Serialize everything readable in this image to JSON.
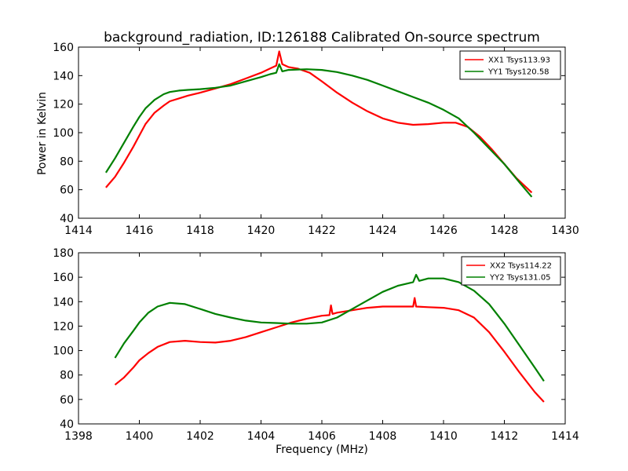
{
  "figure": {
    "title": "background_radiation, ID:126188 Calibrated On-source spectrum",
    "ylabel": "Power in Kelvin",
    "xlabel": "Frequency (MHz)"
  },
  "chart_data": [
    {
      "type": "line",
      "title": "background_radiation, ID:126188 Calibrated On-source spectrum",
      "xlabel": "",
      "ylabel": "Power in Kelvin",
      "xlim": [
        1414,
        1430
      ],
      "ylim": [
        40,
        160
      ],
      "xticks": [
        1414,
        1416,
        1418,
        1420,
        1422,
        1424,
        1426,
        1428,
        1430
      ],
      "yticks": [
        40,
        60,
        80,
        100,
        120,
        140,
        160
      ],
      "grid": false,
      "legend_position": "top-right",
      "series": [
        {
          "name": "XX1 Tsys113.93",
          "color": "#ff0000",
          "x": [
            1414.9,
            1415.2,
            1415.5,
            1415.8,
            1416.0,
            1416.2,
            1416.5,
            1416.8,
            1417.0,
            1417.3,
            1417.6,
            1418.0,
            1418.5,
            1419.0,
            1419.5,
            1420.0,
            1420.3,
            1420.5,
            1420.6,
            1420.7,
            1420.9,
            1421.2,
            1421.6,
            1422.0,
            1422.5,
            1423.0,
            1423.5,
            1424.0,
            1424.5,
            1425.0,
            1425.5,
            1426.0,
            1426.4,
            1426.8,
            1427.2,
            1427.6,
            1428.0,
            1428.4,
            1428.9
          ],
          "values": [
            61.5,
            69,
            79,
            90,
            98,
            106,
            114,
            119,
            122,
            124,
            126,
            128,
            131,
            134,
            138,
            142,
            145,
            147,
            157,
            148,
            146,
            145,
            142,
            136,
            128,
            121,
            115,
            110,
            107,
            105.5,
            106,
            107,
            107,
            104,
            97,
            88,
            78,
            68,
            58
          ]
        },
        {
          "name": "YY1 Tsys120.58",
          "color": "#008000",
          "x": [
            1414.9,
            1415.2,
            1415.5,
            1415.8,
            1416.0,
            1416.2,
            1416.5,
            1416.8,
            1417.0,
            1417.3,
            1417.6,
            1418.0,
            1418.5,
            1419.0,
            1419.5,
            1420.0,
            1420.3,
            1420.5,
            1420.6,
            1420.7,
            1420.9,
            1421.5,
            1422.0,
            1422.5,
            1423.0,
            1423.5,
            1424.0,
            1424.5,
            1425.0,
            1425.5,
            1426.0,
            1426.5,
            1427.0,
            1427.5,
            1428.0,
            1428.5,
            1428.9
          ],
          "values": [
            72,
            82,
            93,
            104,
            111,
            117,
            123,
            127,
            128.5,
            129.5,
            130,
            130.5,
            131.5,
            133,
            136,
            139,
            141,
            142,
            148,
            143,
            144,
            144.5,
            144,
            142.5,
            140,
            137,
            133,
            129,
            125,
            121,
            116,
            110,
            100,
            89,
            78,
            65,
            55
          ]
        }
      ]
    },
    {
      "type": "line",
      "title": "",
      "xlabel": "Frequency (MHz)",
      "ylabel": "",
      "xlim": [
        1398,
        1414
      ],
      "ylim": [
        40,
        180
      ],
      "xticks": [
        1398,
        1400,
        1402,
        1404,
        1406,
        1408,
        1410,
        1412,
        1414
      ],
      "yticks": [
        40,
        60,
        80,
        100,
        120,
        140,
        160,
        180
      ],
      "grid": false,
      "legend_position": "top-right",
      "series": [
        {
          "name": "XX2 Tsys114.22",
          "color": "#ff0000",
          "x": [
            1399.2,
            1399.5,
            1399.8,
            1400.0,
            1400.3,
            1400.6,
            1401.0,
            1401.5,
            1402.0,
            1402.5,
            1403.0,
            1403.5,
            1404.0,
            1404.5,
            1405.0,
            1405.5,
            1406.0,
            1406.25,
            1406.3,
            1406.35,
            1406.5,
            1407.0,
            1407.5,
            1408.0,
            1408.5,
            1409.0,
            1409.05,
            1409.1,
            1409.5,
            1410.0,
            1410.5,
            1411.0,
            1411.5,
            1412.0,
            1412.5,
            1413.0,
            1413.3
          ],
          "values": [
            72,
            78,
            86,
            92,
            98,
            103,
            107,
            108,
            107,
            106.5,
            108,
            111,
            115,
            119,
            123,
            126,
            128.5,
            129,
            137,
            130,
            131,
            133,
            135,
            136,
            136,
            136,
            143,
            136,
            135.5,
            135,
            133,
            127,
            115,
            99,
            82,
            66,
            58
          ]
        },
        {
          "name": "YY2 Tsys131.05",
          "color": "#008000",
          "x": [
            1399.2,
            1399.5,
            1399.8,
            1400.0,
            1400.3,
            1400.6,
            1401.0,
            1401.5,
            1402.0,
            1402.5,
            1403.0,
            1403.5,
            1404.0,
            1404.5,
            1405.0,
            1405.5,
            1406.0,
            1406.5,
            1407.0,
            1407.5,
            1408.0,
            1408.5,
            1409.0,
            1409.1,
            1409.2,
            1409.5,
            1410.0,
            1410.5,
            1411.0,
            1411.5,
            1412.0,
            1412.5,
            1413.0,
            1413.3
          ],
          "values": [
            94,
            106,
            116,
            123,
            131,
            136,
            139,
            138,
            134,
            130,
            127,
            124.5,
            123,
            122.5,
            122,
            122,
            123,
            127,
            134,
            141,
            148,
            153,
            156,
            162,
            157,
            159,
            159,
            156,
            149,
            138,
            122,
            104,
            86,
            75
          ]
        }
      ]
    }
  ]
}
